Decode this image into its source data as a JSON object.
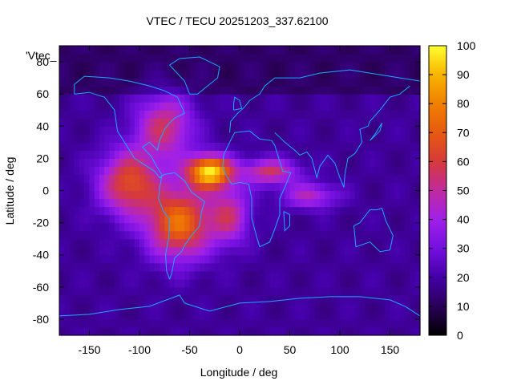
{
  "chart_data": {
    "type": "heatmap",
    "title": "VTEC / TECU 20251203_337.62100",
    "xlabel": "Longitude / deg",
    "ylabel": "Latitude / deg",
    "key_label": "'Vtec_",
    "xlim": [
      -180,
      180
    ],
    "ylim": [
      -90,
      90
    ],
    "x_ticks": [
      -150,
      -100,
      -50,
      0,
      50,
      100,
      150
    ],
    "y_ticks": [
      80,
      60,
      40,
      20,
      0,
      -20,
      -40,
      -60,
      -80
    ],
    "colorbar": {
      "range": [
        0,
        100
      ],
      "ticks": [
        0,
        10,
        20,
        30,
        40,
        50,
        60,
        70,
        80,
        90,
        100
      ],
      "palette": [
        "#000000",
        "#2a0057",
        "#4400a8",
        "#7410e0",
        "#a020e8",
        "#c02a9e",
        "#d63a3a",
        "#e65a10",
        "#f08000",
        "#f8b400",
        "#ffff30"
      ]
    },
    "grid": false,
    "background_tec": 18,
    "peaks": [
      {
        "lon": -30,
        "lat": 12,
        "tec": 95,
        "sx": 22,
        "sy": 10
      },
      {
        "lon": -60,
        "lat": -20,
        "tec": 75,
        "sx": 32,
        "sy": 22
      },
      {
        "lon": -110,
        "lat": 5,
        "tec": 65,
        "sx": 30,
        "sy": 20
      },
      {
        "lon": -75,
        "lat": 40,
        "tec": 55,
        "sx": 28,
        "sy": 20
      },
      {
        "lon": 30,
        "lat": 12,
        "tec": 55,
        "sx": 28,
        "sy": 8
      },
      {
        "lon": 70,
        "lat": -3,
        "tec": 45,
        "sx": 28,
        "sy": 8
      },
      {
        "lon": -10,
        "lat": -15,
        "tec": 50,
        "sx": 20,
        "sy": 18
      }
    ]
  }
}
